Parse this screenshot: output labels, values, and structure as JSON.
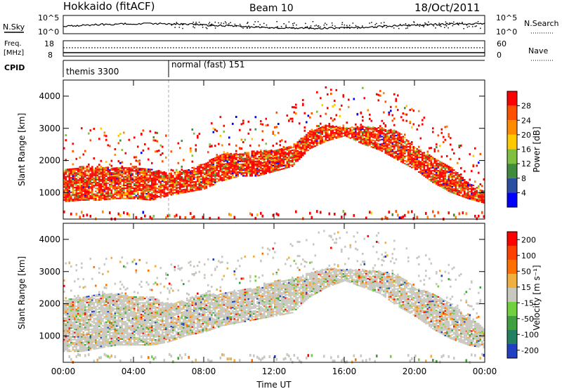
{
  "header": {
    "title": "Hokkaido (fitACF)",
    "beam": "Beam 10",
    "date": "18/Oct/2011"
  },
  "top_panels": {
    "nsky_label": "N.Sky",
    "nsearch_label": "N.Search",
    "nsky_ticks": [
      "10^5",
      "10^0"
    ],
    "nsky_right_ticks": [
      "10^5",
      "10^0"
    ],
    "freq_label_1": "Freq.",
    "freq_label_2": "[MHz]",
    "freq_ticks": [
      "18",
      "8"
    ],
    "nave_label": "Nave",
    "nave_ticks": [
      "60",
      "0"
    ],
    "cpid_label": "CPID",
    "cpid_segments": [
      {
        "label": "themis 3300",
        "start_hour": 0.0,
        "end_hour": 6.0
      },
      {
        "label": "normal (fast) 151",
        "start_hour": 6.0,
        "end_hour": 24.0
      }
    ]
  },
  "axes": {
    "xlabel": "Time UT",
    "ylabel": "Slant Range [km]",
    "x_ticks": [
      "00:00",
      "04:00",
      "08:00",
      "12:00",
      "16:00",
      "20:00",
      "00:00"
    ],
    "y_ticks": [
      "1000",
      "2000",
      "3000",
      "4000"
    ]
  },
  "power_colorbar": {
    "label": "Power [dB]",
    "ticks": [
      "4",
      "8",
      "12",
      "16",
      "20",
      "24",
      "28"
    ]
  },
  "velocity_colorbar": {
    "label": "Velocity [m s⁻¹]",
    "ticks": [
      "200",
      "100",
      "50",
      "15",
      "-15",
      "-50",
      "-100",
      "-200"
    ]
  },
  "chart_data": [
    {
      "type": "heatmap",
      "title": "Power [dB]",
      "xlabel": "Time UT",
      "ylabel": "Slant Range [km]",
      "xlim": [
        0,
        24
      ],
      "ylim": [
        180,
        4500
      ],
      "colorbar_range": [
        0,
        30
      ],
      "colors": [
        "#0000ff",
        "#2b4fa0",
        "#3f8c3f",
        "#80c040",
        "#ffc800",
        "#ff8c00",
        "#ff5000",
        "#ff0000"
      ],
      "echo_band": {
        "hours": [
          0,
          1,
          2,
          3,
          4,
          5,
          6,
          7,
          8,
          9,
          10,
          11,
          12,
          13,
          14,
          15,
          16,
          17,
          18,
          19,
          20,
          21,
          22,
          23,
          24
        ],
        "lower_km": [
          700,
          750,
          750,
          800,
          800,
          750,
          900,
          1000,
          1100,
          1350,
          1500,
          1500,
          1650,
          1800,
          2350,
          2600,
          2750,
          2500,
          2300,
          2000,
          1700,
          1300,
          1000,
          800,
          650
        ],
        "upper_km": [
          1700,
          1800,
          1800,
          1750,
          1800,
          1700,
          1600,
          1700,
          1900,
          2200,
          2200,
          2300,
          2300,
          2450,
          2900,
          3100,
          3000,
          3050,
          3000,
          2900,
          2400,
          2100,
          1800,
          1300,
          1000
        ]
      }
    },
    {
      "type": "heatmap",
      "title": "Velocity [m s⁻¹]",
      "xlabel": "Time UT",
      "ylabel": "Slant Range [km]",
      "xlim": [
        0,
        24
      ],
      "ylim": [
        180,
        4500
      ],
      "colorbar_range": [
        -200,
        200
      ],
      "colors": [
        "#2040c0",
        "#208060",
        "#40a040",
        "#70d040",
        "#c8c8c0",
        "#f0b040",
        "#ff7000",
        "#ff4000",
        "#ff0000"
      ],
      "echo_band": {
        "hours": [
          0,
          1,
          2,
          3,
          4,
          5,
          6,
          7,
          8,
          9,
          10,
          11,
          12,
          13,
          14,
          15,
          16,
          17,
          18,
          19,
          20,
          21,
          22,
          23,
          24
        ],
        "lower_km": [
          500,
          500,
          600,
          700,
          700,
          700,
          800,
          1000,
          1100,
          1300,
          1400,
          1500,
          1600,
          1700,
          2200,
          2500,
          2700,
          2500,
          2300,
          1900,
          1600,
          1200,
          900,
          700,
          600
        ],
        "upper_km": [
          2100,
          2200,
          2300,
          2300,
          2200,
          2200,
          2000,
          2100,
          2300,
          2300,
          2400,
          2500,
          2700,
          2750,
          2950,
          3100,
          3050,
          3050,
          3000,
          2900,
          2500,
          2300,
          2000,
          1600,
          1200
        ]
      }
    }
  ]
}
